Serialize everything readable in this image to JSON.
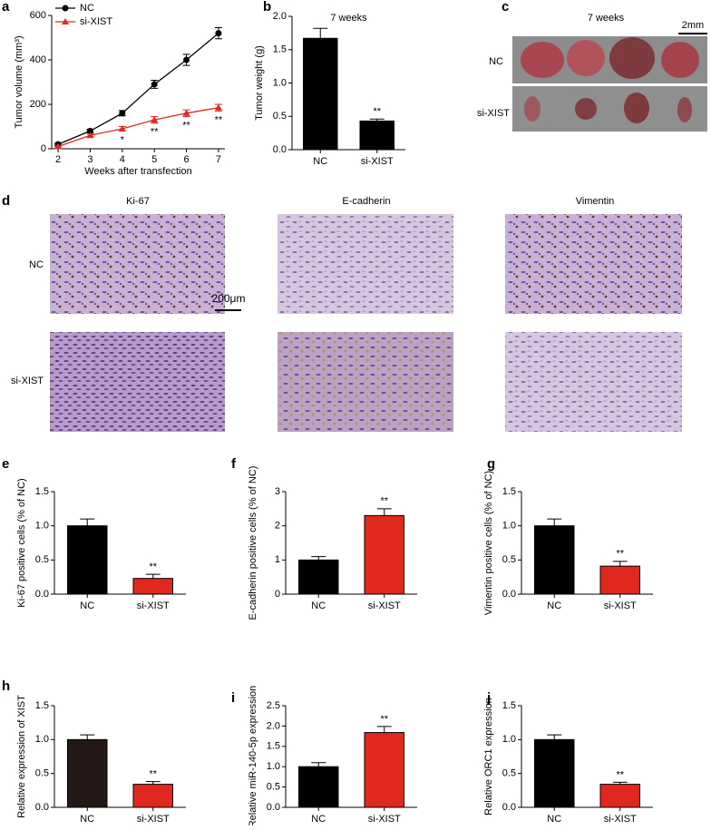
{
  "chart_data": [
    {
      "type": "line",
      "panel_label": "a",
      "xlabel": "Weeks after transfection",
      "ylabel": "Tumor volume (mm³)",
      "x": [
        2,
        3,
        4,
        5,
        6,
        7
      ],
      "xlim": [
        1.8,
        7.2
      ],
      "xticks": [
        2,
        3,
        4,
        5,
        6,
        7
      ],
      "ylim": [
        0,
        600
      ],
      "yticks": [
        0,
        200,
        400,
        600
      ],
      "legend": "top-left",
      "series": [
        {
          "name": "NC",
          "color": "#000000",
          "marker": "circle",
          "values": [
            20,
            80,
            160,
            290,
            400,
            520
          ],
          "errors": [
            5,
            8,
            12,
            18,
            25,
            25
          ]
        },
        {
          "name": "si-XIST",
          "color": "#e0281f",
          "marker": "triangle",
          "values": [
            10,
            60,
            90,
            130,
            160,
            185
          ],
          "errors": [
            3,
            6,
            10,
            15,
            15,
            15
          ]
        }
      ],
      "annotations": [
        {
          "x": 4,
          "text": "*"
        },
        {
          "x": 5,
          "text": "**"
        },
        {
          "x": 6,
          "text": "**"
        },
        {
          "x": 7,
          "text": "**"
        }
      ]
    },
    {
      "type": "bar",
      "panel_label": "b",
      "title": "7 weeks",
      "ylabel": "Tumor weight (g)",
      "categories": [
        "NC",
        "si-XIST"
      ],
      "values": [
        1.67,
        0.43
      ],
      "errors": [
        0.15,
        0.03
      ],
      "colors": [
        "#000000",
        "#000000"
      ],
      "ylim": [
        0,
        2
      ],
      "yticks": [
        {
          "value": 0,
          "label": "0.0"
        },
        {
          "value": 0.5,
          "label": "0.5"
        },
        {
          "value": 1,
          "label": "1.0"
        },
        {
          "value": 1.5,
          "label": "1.5"
        },
        {
          "value": 2,
          "label": "2.0"
        }
      ],
      "annotations": [
        {
          "x": "si-XIST",
          "text": "**"
        }
      ]
    },
    {
      "type": "bar",
      "panel_label": "e",
      "ylabel": "Ki-67 positive cells (% of NC)",
      "categories": [
        "NC",
        "si-XIST"
      ],
      "values": [
        1.0,
        0.23
      ],
      "errors": [
        0.1,
        0.06
      ],
      "colors": [
        "#000000",
        "#e0281f"
      ],
      "ylim": [
        0,
        1.5
      ],
      "yticks": [
        {
          "value": 0,
          "label": "0.0"
        },
        {
          "value": 0.5,
          "label": "0.5"
        },
        {
          "value": 1,
          "label": "1.0"
        },
        {
          "value": 1.5,
          "label": "1.5"
        }
      ],
      "annotations": [
        {
          "x": "si-XIST",
          "text": "**"
        }
      ]
    },
    {
      "type": "bar",
      "panel_label": "f",
      "ylabel": "E-cadherin positive cells (% of NC)",
      "categories": [
        "NC",
        "si-XIST"
      ],
      "values": [
        1.0,
        2.3
      ],
      "errors": [
        0.1,
        0.2
      ],
      "colors": [
        "#000000",
        "#e0281f"
      ],
      "ylim": [
        0,
        3
      ],
      "yticks": [
        0,
        1,
        2,
        3
      ],
      "annotations": [
        {
          "x": "si-XIST",
          "text": "**"
        }
      ]
    },
    {
      "type": "bar",
      "panel_label": "g",
      "ylabel": "Vimentin positive cells (% of NC)",
      "categories": [
        "NC",
        "si-XIST"
      ],
      "values": [
        1.0,
        0.41
      ],
      "errors": [
        0.1,
        0.07
      ],
      "colors": [
        "#000000",
        "#e0281f"
      ],
      "ylim": [
        0,
        1.5
      ],
      "yticks": [
        {
          "value": 0,
          "label": "0.0"
        },
        {
          "value": 0.5,
          "label": "0.5"
        },
        {
          "value": 1,
          "label": "1.0"
        },
        {
          "value": 1.5,
          "label": "1.5"
        }
      ],
      "annotations": [
        {
          "x": "si-XIST",
          "text": "**"
        }
      ]
    },
    {
      "type": "bar",
      "panel_label": "h",
      "ylabel": "Relative expression of XIST",
      "categories": [
        "NC",
        "si-XIST"
      ],
      "values": [
        1.0,
        0.34
      ],
      "errors": [
        0.07,
        0.04
      ],
      "colors": [
        "#231815",
        "#e0281f"
      ],
      "ylim": [
        0,
        1.5
      ],
      "yticks": [
        {
          "value": 0,
          "label": "0.0"
        },
        {
          "value": 0.5,
          "label": "0.5"
        },
        {
          "value": 1,
          "label": "1.0"
        },
        {
          "value": 1.5,
          "label": "1.5"
        }
      ],
      "annotations": [
        {
          "x": "si-XIST",
          "text": "**"
        }
      ]
    },
    {
      "type": "bar",
      "panel_label": "i",
      "ylabel": "Relative miR-140-5p expression",
      "categories": [
        "NC",
        "si-XIST"
      ],
      "values": [
        1.0,
        1.84
      ],
      "errors": [
        0.1,
        0.15
      ],
      "colors": [
        "#000000",
        "#e0281f"
      ],
      "ylim": [
        0,
        2.5
      ],
      "yticks": [
        {
          "value": 0,
          "label": "0.0"
        },
        {
          "value": 0.5,
          "label": "0.5"
        },
        {
          "value": 1,
          "label": "1.0"
        },
        {
          "value": 1.5,
          "label": "1.5"
        },
        {
          "value": 2,
          "label": "2.0"
        },
        {
          "value": 2.5,
          "label": "2.5"
        }
      ],
      "annotations": [
        {
          "x": "si-XIST",
          "text": "**"
        }
      ]
    },
    {
      "type": "bar",
      "panel_label": "j",
      "ylabel": "Relative ORC1 expression",
      "categories": [
        "NC",
        "si-XIST"
      ],
      "values": [
        1.0,
        0.34
      ],
      "errors": [
        0.07,
        0.03
      ],
      "colors": [
        "#000000",
        "#e0281f"
      ],
      "ylim": [
        0,
        1.5
      ],
      "yticks": [
        {
          "value": 0,
          "label": "0.0"
        },
        {
          "value": 0.5,
          "label": "0.5"
        },
        {
          "value": 1,
          "label": "1.0"
        },
        {
          "value": 1.5,
          "label": "1.5"
        }
      ],
      "annotations": [
        {
          "x": "si-XIST",
          "text": "**"
        }
      ]
    }
  ],
  "panel_c": {
    "label": "c",
    "title": "7 weeks",
    "scale": "2mm",
    "rows": [
      "NC",
      "si-XIST"
    ]
  },
  "panel_d": {
    "label": "d",
    "columns": [
      "Ki-67",
      "E-cadherin",
      "Vimentin"
    ],
    "rows": [
      "NC",
      "si-XIST"
    ],
    "scale": "200μm"
  }
}
